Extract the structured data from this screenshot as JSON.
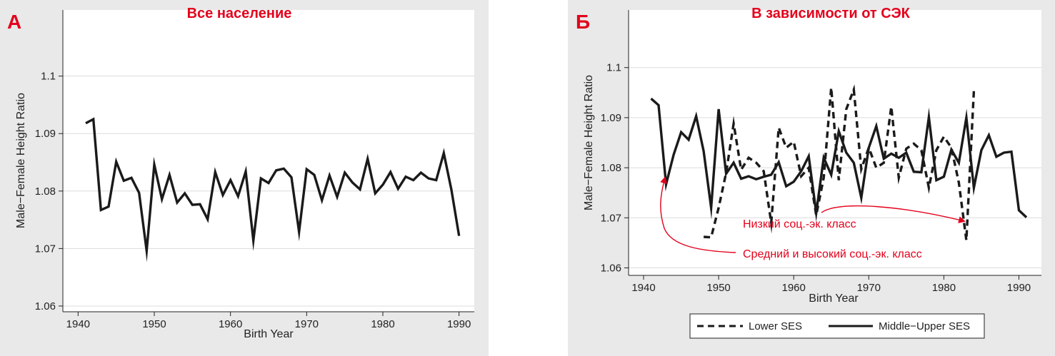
{
  "colors": {
    "panel_bg": "#e9e9e9",
    "plot_bg": "#ffffff",
    "grid": "#dcdcdc",
    "line": "#1a1a1a",
    "accent": "#e3001b"
  },
  "chart_data": [
    {
      "type": "line",
      "panel_letter": "А",
      "title": "Все население",
      "xlabel": "Birth Year",
      "ylabel": "Male−Female Height Ratio",
      "xlim": [
        1938,
        1992
      ],
      "ylim": [
        1.059,
        1.1115
      ],
      "xticks": [
        1940,
        1950,
        1960,
        1970,
        1980,
        1990
      ],
      "yticks": [
        1.06,
        1.07,
        1.08,
        1.09,
        1.1
      ],
      "ytick_labels": [
        "1.06",
        "1.07",
        "1.08",
        "1.09",
        "1.1"
      ],
      "grid": true,
      "series": [
        {
          "style": "solid",
          "x": [
            1941,
            1942,
            1943,
            1944,
            1945,
            1946,
            1947,
            1948,
            1949,
            1950,
            1951,
            1952,
            1953,
            1954,
            1955,
            1956,
            1957,
            1958,
            1959,
            1960,
            1961,
            1962,
            1963,
            1964,
            1965,
            1966,
            1967,
            1968,
            1969,
            1970,
            1971,
            1972,
            1973,
            1974,
            1975,
            1976,
            1977,
            1978,
            1979,
            1980,
            1981,
            1982,
            1983,
            1984,
            1985,
            1986,
            1987,
            1988,
            1989,
            1990
          ],
          "y": [
            1.0918,
            1.0925,
            1.0767,
            1.0773,
            1.0851,
            1.0818,
            1.0823,
            1.0797,
            1.0696,
            1.0846,
            1.0786,
            1.0828,
            1.078,
            1.0796,
            1.0776,
            1.0777,
            1.0751,
            1.0833,
            1.0793,
            1.0819,
            1.0791,
            1.0834,
            1.0714,
            1.0822,
            1.0814,
            1.0836,
            1.0839,
            1.0824,
            1.0729,
            1.0838,
            1.0828,
            1.0784,
            1.0827,
            1.079,
            1.0832,
            1.0815,
            1.0803,
            1.0856,
            1.0796,
            1.0811,
            1.0833,
            1.0804,
            1.0825,
            1.0819,
            1.0832,
            1.0822,
            1.0819,
            1.0866,
            1.0802,
            1.0722
          ]
        }
      ]
    },
    {
      "type": "line",
      "panel_letter": "Б",
      "title": "В зависимости от СЭК",
      "xlabel": "Birth Year",
      "ylabel": "Male−Female Height Ratio",
      "xlim": [
        1938,
        1993
      ],
      "ylim": [
        1.0585,
        1.1115
      ],
      "xticks": [
        1940,
        1950,
        1960,
        1970,
        1980,
        1990
      ],
      "yticks": [
        1.06,
        1.07,
        1.08,
        1.09,
        1.1
      ],
      "ytick_labels": [
        "1.06",
        "1.07",
        "1.08",
        "1.09",
        "1.1"
      ],
      "grid": true,
      "legend_position": "bottom",
      "series": [
        {
          "name": "Lower SES",
          "style": "dashed",
          "x": [
            1948,
            1949,
            1950,
            1951,
            1952,
            1953,
            1954,
            1955,
            1956,
            1957,
            1958,
            1959,
            1960,
            1961,
            1962,
            1963,
            1964,
            1965,
            1966,
            1967,
            1968,
            1969,
            1970,
            1971,
            1972,
            1973,
            1974,
            1975,
            1976,
            1977,
            1978,
            1979,
            1980,
            1981,
            1982,
            1983,
            1984
          ],
          "y": [
            1.0662,
            1.0661,
            1.072,
            1.079,
            1.0888,
            1.0796,
            1.082,
            1.081,
            1.0793,
            1.069,
            1.088,
            1.084,
            1.0852,
            1.0783,
            1.08,
            1.0705,
            1.078,
            1.096,
            1.0775,
            1.0917,
            1.0956,
            1.0797,
            1.084,
            1.08,
            1.081,
            1.0922,
            1.078,
            1.0838,
            1.0848,
            1.0835,
            1.076,
            1.0835,
            1.0862,
            1.084,
            1.077,
            1.0655,
            1.0953
          ]
        },
        {
          "name": "Middle−Upper SES",
          "style": "solid",
          "x": [
            1941,
            1942,
            1943,
            1944,
            1945,
            1946,
            1947,
            1948,
            1949,
            1950,
            1951,
            1952,
            1953,
            1954,
            1955,
            1956,
            1957,
            1958,
            1959,
            1960,
            1961,
            1962,
            1963,
            1964,
            1965,
            1966,
            1967,
            1968,
            1969,
            1970,
            1971,
            1972,
            1973,
            1974,
            1975,
            1976,
            1977,
            1978,
            1979,
            1980,
            1981,
            1982,
            1983,
            1984,
            1985,
            1986,
            1987,
            1988,
            1989,
            1990,
            1991
          ],
          "y": [
            1.0938,
            1.0925,
            1.0767,
            1.0826,
            1.0871,
            1.0856,
            1.0903,
            1.0833,
            1.072,
            1.0917,
            1.0788,
            1.081,
            1.0778,
            1.0783,
            1.0777,
            1.0782,
            1.0786,
            1.0811,
            1.0763,
            1.0772,
            1.0793,
            1.0823,
            1.071,
            1.082,
            1.0786,
            1.0873,
            1.083,
            1.081,
            1.074,
            1.084,
            1.0883,
            1.0818,
            1.0828,
            1.082,
            1.083,
            1.0792,
            1.0791,
            1.0901,
            1.0775,
            1.0782,
            1.0836,
            1.081,
            1.09,
            1.076,
            1.0835,
            1.0865,
            1.0822,
            1.083,
            1.0832,
            1.0715,
            1.0701
          ]
        }
      ],
      "annotations": [
        {
          "text": "Низкий соц.-эк. класс",
          "arrow_to": [
            1983,
            1.067
          ]
        },
        {
          "text": "Средний и высокий соц.-эк. класс",
          "arrow_to": [
            1943,
            1.0745
          ]
        }
      ]
    }
  ]
}
